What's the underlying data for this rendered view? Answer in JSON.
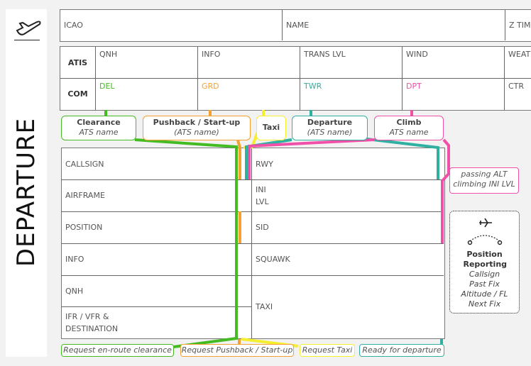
{
  "title": "DEPARTURE",
  "header": {
    "icao": "ICAO",
    "name": "NAME",
    "ztime": "Z TIME"
  },
  "atis": {
    "label": "ATIS",
    "cells": [
      "QNH",
      "INFO",
      "TRANS LVL",
      "WIND",
      "WEATHER"
    ]
  },
  "com": {
    "label": "COM",
    "cells": [
      "DEL",
      "GRD",
      "TWR",
      "DPT",
      "CTR"
    ]
  },
  "phases": [
    {
      "title": "Clearance",
      "sub": "ATS name",
      "color": "#44bb22"
    },
    {
      "title": "Pushback / Start-up",
      "sub": "(ATS name)",
      "color": "#f5a030"
    },
    {
      "title": "Taxi",
      "sub": "",
      "color": "#f5ef30"
    },
    {
      "title": "Departure",
      "sub": "(ATS name)",
      "color": "#2fb0a0"
    },
    {
      "title": "Climb",
      "sub": "ATS name",
      "color": "#f050a8"
    }
  ],
  "left_rows": [
    "CALLSIGN",
    "AIRFRAME",
    "POSITION",
    "INFO",
    "QNH",
    "IFR / VFR & DESTINATION"
  ],
  "right_rows": [
    "RWY",
    "INI LVL",
    "SID",
    "SQUAWK",
    "TAXI"
  ],
  "climb_note": [
    "passing ALT",
    "climbing INI LVL"
  ],
  "position_reporting": {
    "title": "Position Reporting",
    "items": [
      "Callsign",
      "Past Fix",
      "Altitude / FL",
      "Next Fix"
    ]
  },
  "buttons": [
    "Request en-route clearance",
    "Request Pushback / Start-up",
    "Request Taxi",
    "Ready for departure"
  ]
}
